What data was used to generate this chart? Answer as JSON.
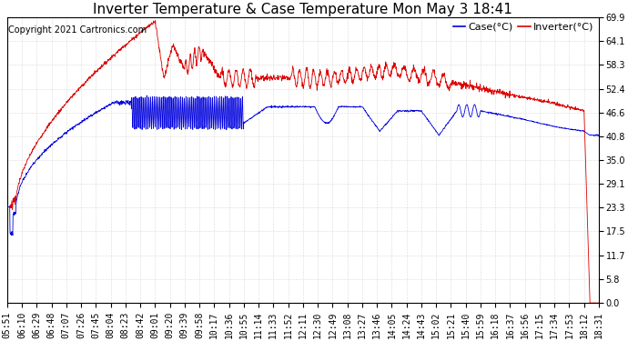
{
  "title": "Inverter Temperature & Case Temperature Mon May 3 18:41",
  "copyright": "Copyright 2021 Cartronics.com",
  "legend_case": "Case(°C)",
  "legend_inverter": "Inverter(°C)",
  "yticks": [
    0.0,
    5.8,
    11.7,
    17.5,
    23.3,
    29.1,
    35.0,
    40.8,
    46.6,
    52.4,
    58.3,
    64.1,
    69.9
  ],
  "ymin": 0.0,
  "ymax": 69.9,
  "background_color": "#ffffff",
  "plot_bg_color": "#ffffff",
  "grid_color": "#bbbbbb",
  "case_color": "#0000dd",
  "inverter_color": "#dd0000",
  "title_fontsize": 11,
  "copyright_fontsize": 7,
  "legend_fontsize": 8,
  "tick_fontsize": 7,
  "xtick_labels": [
    "05:51",
    "06:10",
    "06:29",
    "06:48",
    "07:07",
    "07:26",
    "07:45",
    "08:04",
    "08:23",
    "08:42",
    "09:01",
    "09:20",
    "09:39",
    "09:58",
    "10:17",
    "10:36",
    "10:55",
    "11:14",
    "11:33",
    "11:52",
    "12:11",
    "12:30",
    "12:49",
    "13:08",
    "13:27",
    "13:46",
    "14:05",
    "14:24",
    "14:43",
    "15:02",
    "15:21",
    "15:40",
    "15:59",
    "16:18",
    "16:37",
    "16:56",
    "17:15",
    "17:34",
    "17:53",
    "18:12",
    "18:31"
  ]
}
